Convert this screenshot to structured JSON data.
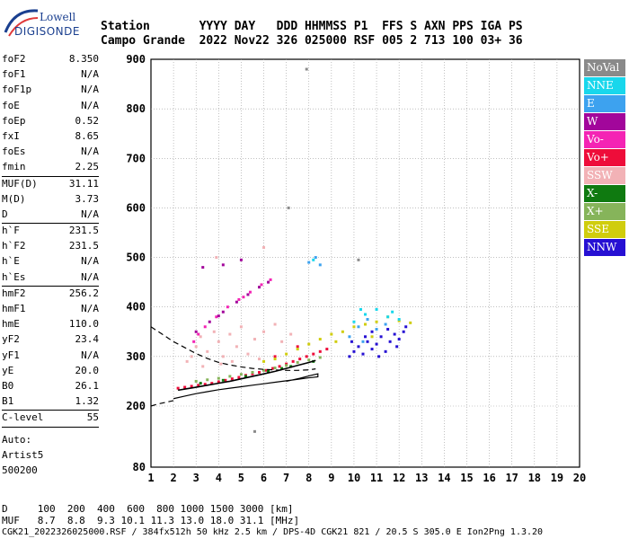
{
  "logo": {
    "line1": "Lowell",
    "line2": "DIGISONDE"
  },
  "header": {
    "row1": "Station       YYYY DAY   DDD HHMMSS P1  FFS S AXN PPS IGA PS",
    "row2": "Campo Grande  2022 Nov22 326 025000 RSF 005 2 713 100 03+ 36"
  },
  "params_group1": [
    {
      "key": "foF2",
      "value": "8.350"
    },
    {
      "key": "foF1",
      "value": "N/A"
    },
    {
      "key": "foF1p",
      "value": "N/A"
    },
    {
      "key": "foE",
      "value": "N/A"
    },
    {
      "key": "foEp",
      "value": "0.52"
    },
    {
      "key": "fxI",
      "value": "8.65"
    },
    {
      "key": "foEs",
      "value": "N/A"
    },
    {
      "key": "fmin",
      "value": "2.25"
    }
  ],
  "params_group2": [
    {
      "key": "MUF(D)",
      "value": "31.11"
    },
    {
      "key": "M(D)",
      "value": "3.73"
    },
    {
      "key": "D",
      "value": "N/A"
    }
  ],
  "params_group3": [
    {
      "key": "h`F",
      "value": "231.5"
    },
    {
      "key": "h`F2",
      "value": "231.5"
    },
    {
      "key": "h`E",
      "value": "N/A"
    },
    {
      "key": "h`Es",
      "value": "N/A"
    }
  ],
  "params_group4": [
    {
      "key": "hmF2",
      "value": "256.2"
    },
    {
      "key": "hmF1",
      "value": "N/A"
    },
    {
      "key": "hmE",
      "value": "110.0"
    },
    {
      "key": "yF2",
      "value": "23.4"
    },
    {
      "key": "yF1",
      "value": "N/A"
    },
    {
      "key": "yE",
      "value": "20.0"
    },
    {
      "key": "B0",
      "value": "26.1"
    },
    {
      "key": "B1",
      "value": "1.32"
    }
  ],
  "params_group5": [
    {
      "key": "C-level",
      "value": "55"
    }
  ],
  "auto": {
    "line1": "Auto:",
    "line2": "Artist5",
    "line3": "500200"
  },
  "legend": [
    {
      "label": "NoVal",
      "color": "#8a8a8a"
    },
    {
      "label": "NNE",
      "color": "#19d7ec"
    },
    {
      "label": "E",
      "color": "#3da2ef"
    },
    {
      "label": "W",
      "color": "#a2069b"
    },
    {
      "label": "Vo-",
      "color": "#f424b4"
    },
    {
      "label": "Vo+",
      "color": "#ee0d3a"
    },
    {
      "label": "SSW",
      "color": "#f2b2b6"
    },
    {
      "label": "X-",
      "color": "#0f7a10"
    },
    {
      "label": "X+",
      "color": "#86b45a"
    },
    {
      "label": "SSE",
      "color": "#d0cd0d"
    },
    {
      "label": "NNW",
      "color": "#2610d3"
    }
  ],
  "footer": {
    "line1": "D     100  200  400  600  800 1000 1500 3000 [km]",
    "line2": "MUF   8.7  8.8  9.3 10.1 11.3 13.0 18.0 31.1 [MHz]",
    "line3": "CGK21_2022326025000.RSF / 384fx512h 50 kHz 2.5 km / DPS-4D CGK21 821 / 20.5 S 305.0 E Ion2Png 1.3.20"
  },
  "chart_data": {
    "type": "scatter",
    "title": "",
    "xlabel": "",
    "ylabel": "",
    "xlim": [
      1,
      20
    ],
    "ylim": [
      80,
      900
    ],
    "xticks": [
      1,
      2,
      3,
      4,
      5,
      6,
      7,
      8,
      9,
      10,
      11,
      12,
      13,
      14,
      15,
      16,
      17,
      18,
      19,
      20
    ],
    "yticks": [
      80,
      200,
      300,
      400,
      500,
      600,
      700,
      800,
      900
    ],
    "grid": true,
    "series": [
      {
        "name": "SSW",
        "color": "#f2b2b6",
        "points": [
          [
            2.8,
            300
          ],
          [
            3.0,
            320
          ],
          [
            3.2,
            340
          ],
          [
            3.5,
            310
          ],
          [
            3.8,
            350
          ],
          [
            4.0,
            330
          ],
          [
            4.2,
            300
          ],
          [
            4.5,
            345
          ],
          [
            4.8,
            320
          ],
          [
            5.0,
            360
          ],
          [
            5.3,
            305
          ],
          [
            5.6,
            335
          ],
          [
            6.0,
            350
          ],
          [
            6.5,
            365
          ],
          [
            2.6,
            290
          ],
          [
            3.3,
            280
          ],
          [
            4.1,
            285
          ],
          [
            4.6,
            290
          ],
          [
            5.8,
            295
          ],
          [
            6.8,
            330
          ],
          [
            7.2,
            345
          ],
          [
            3.9,
            500
          ],
          [
            6.0,
            520
          ]
        ]
      },
      {
        "name": "Vo-",
        "color": "#f424b4",
        "points": [
          [
            2.9,
            330
          ],
          [
            3.4,
            360
          ],
          [
            3.9,
            380
          ],
          [
            4.4,
            400
          ],
          [
            4.9,
            415
          ],
          [
            5.4,
            430
          ],
          [
            5.9,
            445
          ],
          [
            6.3,
            455
          ],
          [
            3.1,
            345
          ],
          [
            5.1,
            420
          ]
        ]
      },
      {
        "name": "W",
        "color": "#a2069b",
        "points": [
          [
            3.0,
            350
          ],
          [
            3.6,
            370
          ],
          [
            4.2,
            390
          ],
          [
            4.8,
            410
          ],
          [
            5.3,
            425
          ],
          [
            5.8,
            440
          ],
          [
            6.2,
            450
          ],
          [
            4.0,
            382
          ],
          [
            3.3,
            480
          ],
          [
            4.2,
            485
          ],
          [
            5.0,
            495
          ]
        ]
      },
      {
        "name": "Vo+",
        "color": "#ee0d3a",
        "points": [
          [
            2.2,
            236
          ],
          [
            2.5,
            238
          ],
          [
            2.8,
            240
          ],
          [
            3.1,
            242
          ],
          [
            3.4,
            244
          ],
          [
            3.7,
            246
          ],
          [
            4.0,
            249
          ],
          [
            4.3,
            252
          ],
          [
            4.6,
            255
          ],
          [
            4.9,
            258
          ],
          [
            5.2,
            262
          ],
          [
            5.5,
            265
          ],
          [
            5.8,
            268
          ],
          [
            6.1,
            272
          ],
          [
            6.4,
            276
          ],
          [
            6.7,
            280
          ],
          [
            7.0,
            285
          ],
          [
            7.3,
            290
          ],
          [
            7.6,
            295
          ],
          [
            7.9,
            300
          ],
          [
            8.2,
            305
          ],
          [
            8.5,
            310
          ],
          [
            8.8,
            315
          ],
          [
            6.5,
            300
          ],
          [
            7.5,
            320
          ]
        ]
      },
      {
        "name": "X+",
        "color": "#86b45a",
        "points": [
          [
            3.0,
            250
          ],
          [
            3.5,
            253
          ],
          [
            4.0,
            256
          ],
          [
            4.5,
            260
          ],
          [
            5.0,
            264
          ],
          [
            5.5,
            268
          ],
          [
            6.0,
            272
          ],
          [
            6.5,
            277
          ],
          [
            7.0,
            282
          ],
          [
            7.5,
            288
          ],
          [
            8.0,
            293
          ],
          [
            8.5,
            298
          ]
        ]
      },
      {
        "name": "X-",
        "color": "#0f7a10",
        "points": [
          [
            3.2,
            246
          ],
          [
            4.2,
            252
          ],
          [
            5.2,
            260
          ],
          [
            6.2,
            270
          ],
          [
            7.2,
            280
          ],
          [
            8.2,
            290
          ],
          [
            6.8,
            276
          ]
        ]
      },
      {
        "name": "SSE",
        "color": "#d0cd0d",
        "points": [
          [
            6.0,
            290
          ],
          [
            6.5,
            295
          ],
          [
            7.0,
            305
          ],
          [
            7.5,
            315
          ],
          [
            8.0,
            325
          ],
          [
            8.5,
            335
          ],
          [
            9.0,
            345
          ],
          [
            9.5,
            350
          ],
          [
            10.0,
            360
          ],
          [
            10.5,
            365
          ],
          [
            11.0,
            370
          ],
          [
            11.5,
            380
          ],
          [
            12.0,
            372
          ],
          [
            12.5,
            368
          ],
          [
            9.2,
            330
          ],
          [
            10.8,
            340
          ]
        ]
      },
      {
        "name": "E",
        "color": "#3da2ef",
        "points": [
          [
            9.8,
            340
          ],
          [
            10.2,
            360
          ],
          [
            10.6,
            375
          ],
          [
            11.0,
            355
          ],
          [
            11.4,
            365
          ],
          [
            10.4,
            330
          ],
          [
            8.0,
            490
          ],
          [
            8.3,
            500
          ],
          [
            8.5,
            485
          ]
        ]
      },
      {
        "name": "NNE",
        "color": "#19d7ec",
        "points": [
          [
            10.0,
            370
          ],
          [
            10.5,
            385
          ],
          [
            11.0,
            395
          ],
          [
            11.5,
            380
          ],
          [
            12.0,
            375
          ],
          [
            10.3,
            395
          ],
          [
            11.7,
            390
          ],
          [
            8.2,
            495
          ]
        ]
      },
      {
        "name": "NNW",
        "color": "#2610d3",
        "points": [
          [
            9.8,
            300
          ],
          [
            10.0,
            310
          ],
          [
            10.2,
            320
          ],
          [
            10.4,
            305
          ],
          [
            10.6,
            330
          ],
          [
            10.8,
            315
          ],
          [
            11.0,
            325
          ],
          [
            11.2,
            340
          ],
          [
            11.4,
            310
          ],
          [
            11.6,
            330
          ],
          [
            11.8,
            345
          ],
          [
            12.0,
            335
          ],
          [
            12.2,
            350
          ],
          [
            10.5,
            340
          ],
          [
            11.1,
            300
          ],
          [
            9.9,
            330
          ],
          [
            11.5,
            355
          ],
          [
            10.8,
            350
          ],
          [
            11.9,
            320
          ],
          [
            12.3,
            360
          ]
        ]
      },
      {
        "name": "NoVal",
        "color": "#8a8a8a",
        "points": [
          [
            7.1,
            600
          ],
          [
            7.9,
            880
          ],
          [
            10.2,
            495
          ],
          [
            5.6,
            150
          ]
        ]
      }
    ],
    "profile_dashed": [
      [
        1.0,
        360
      ],
      [
        1.5,
        345
      ],
      [
        2.0,
        330
      ],
      [
        2.5,
        318
      ],
      [
        3.0,
        306
      ],
      [
        3.5,
        296
      ],
      [
        4.0,
        288
      ],
      [
        4.5,
        283
      ],
      [
        5.0,
        279
      ],
      [
        5.5,
        276
      ],
      [
        6.0,
        274
      ],
      [
        6.5,
        273
      ],
      [
        7.0,
        272
      ],
      [
        7.5,
        272
      ],
      [
        8.0,
        273
      ],
      [
        8.3,
        275
      ]
    ],
    "profile_dashed_low": [
      [
        1.0,
        200
      ],
      [
        1.3,
        204
      ],
      [
        1.7,
        208
      ],
      [
        2.0,
        211
      ]
    ],
    "trace_solid": [
      [
        2.0,
        215
      ],
      [
        2.5,
        220
      ],
      [
        3.0,
        225
      ],
      [
        3.5,
        229
      ],
      [
        4.0,
        233
      ],
      [
        4.5,
        236
      ],
      [
        5.0,
        239
      ],
      [
        5.5,
        242
      ],
      [
        6.0,
        245
      ],
      [
        6.5,
        248
      ],
      [
        7.0,
        251
      ],
      [
        7.5,
        254
      ],
      [
        8.0,
        257
      ],
      [
        8.4,
        259
      ],
      [
        8.4,
        265
      ],
      [
        8.1,
        262
      ],
      [
        7.6,
        256
      ],
      [
        7.0,
        250
      ]
    ],
    "trace_black_o": [
      [
        2.2,
        232
      ],
      [
        2.6,
        235
      ],
      [
        3.0,
        238
      ],
      [
        3.5,
        242
      ],
      [
        4.0,
        246
      ],
      [
        4.5,
        250
      ],
      [
        5.0,
        255
      ],
      [
        5.5,
        260
      ],
      [
        6.0,
        265
      ],
      [
        6.5,
        270
      ],
      [
        7.0,
        276
      ],
      [
        7.5,
        282
      ],
      [
        8.0,
        288
      ],
      [
        8.3,
        292
      ]
    ]
  }
}
